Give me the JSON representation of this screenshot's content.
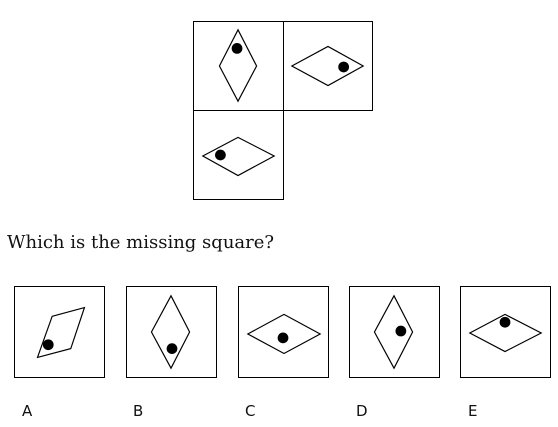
{
  "question": {
    "text": "Which is the missing square?"
  },
  "options": [
    {
      "label": "A"
    },
    {
      "label": "B"
    },
    {
      "label": "C"
    },
    {
      "label": "D"
    },
    {
      "label": "E"
    }
  ]
}
